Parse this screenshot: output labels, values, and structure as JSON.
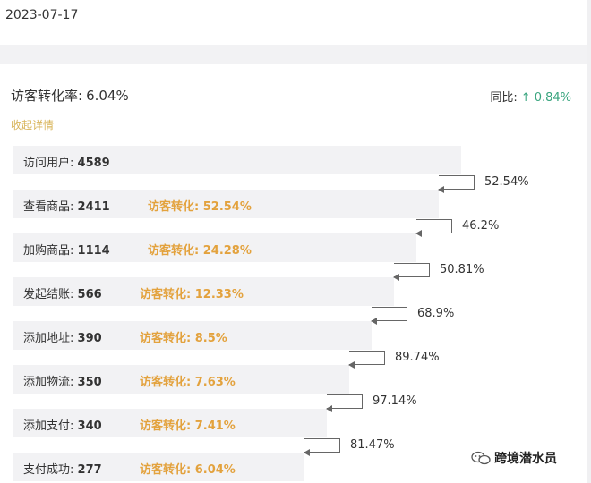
{
  "date": "2023-07-17",
  "summary": {
    "label": "访客转化率:",
    "value": "6.04%"
  },
  "yoy": {
    "label": "同比:",
    "arrow": "↑",
    "value": "0.84%"
  },
  "collapse_label": "收起详情",
  "conv_label": "访客转化:",
  "funnel": [
    {
      "label": "访问用户:",
      "count": "4589",
      "conversion": ""
    },
    {
      "label": "查看商品:",
      "count": "2411",
      "conversion": "52.54%"
    },
    {
      "label": "加购商品:",
      "count": "1114",
      "conversion": "24.28%"
    },
    {
      "label": "发起结账:",
      "count": "566",
      "conversion": "12.33%"
    },
    {
      "label": "添加地址:",
      "count": "390",
      "conversion": "8.5%"
    },
    {
      "label": "添加物流:",
      "count": "350",
      "conversion": "7.63%"
    },
    {
      "label": "添加支付:",
      "count": "340",
      "conversion": "7.41%"
    },
    {
      "label": "支付成功:",
      "count": "277",
      "conversion": "6.04%"
    }
  ],
  "step_rates": [
    "52.54%",
    "46.2%",
    "50.81%",
    "68.9%",
    "89.74%",
    "97.14%",
    "81.47%"
  ],
  "watermark": "跨境潜水员",
  "colors": {
    "accent": "#e3a23d",
    "up": "#3aa57f",
    "bar": "#f2f2f4"
  }
}
